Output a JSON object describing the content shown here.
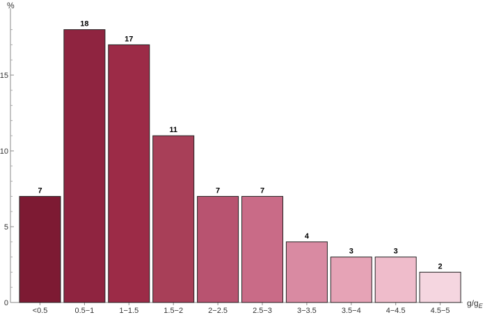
{
  "chart_data": {
    "type": "bar",
    "categories": [
      "<0.5",
      "0.5−1",
      "1−1.5",
      "1.5−2",
      "2−2.5",
      "2.5−3",
      "3−3.5",
      "3.5−4",
      "4−4.5",
      "4.5−5"
    ],
    "values": [
      7,
      18,
      17,
      11,
      7,
      7,
      4,
      3,
      3,
      2
    ],
    "ylabel": "%",
    "xlabel": "g/g",
    "xlabel_subscript": "E",
    "ylim": [
      0,
      19.5
    ],
    "yticks": [
      0,
      5,
      10,
      15
    ],
    "grid": false,
    "data_labels": true,
    "colors": [
      "#7d1a33",
      "#8f2440",
      "#9c2b47",
      "#a83f58",
      "#b85370",
      "#c96b87",
      "#d98aa2",
      "#e6a3b6",
      "#efbccb",
      "#f5d6e0"
    ]
  }
}
